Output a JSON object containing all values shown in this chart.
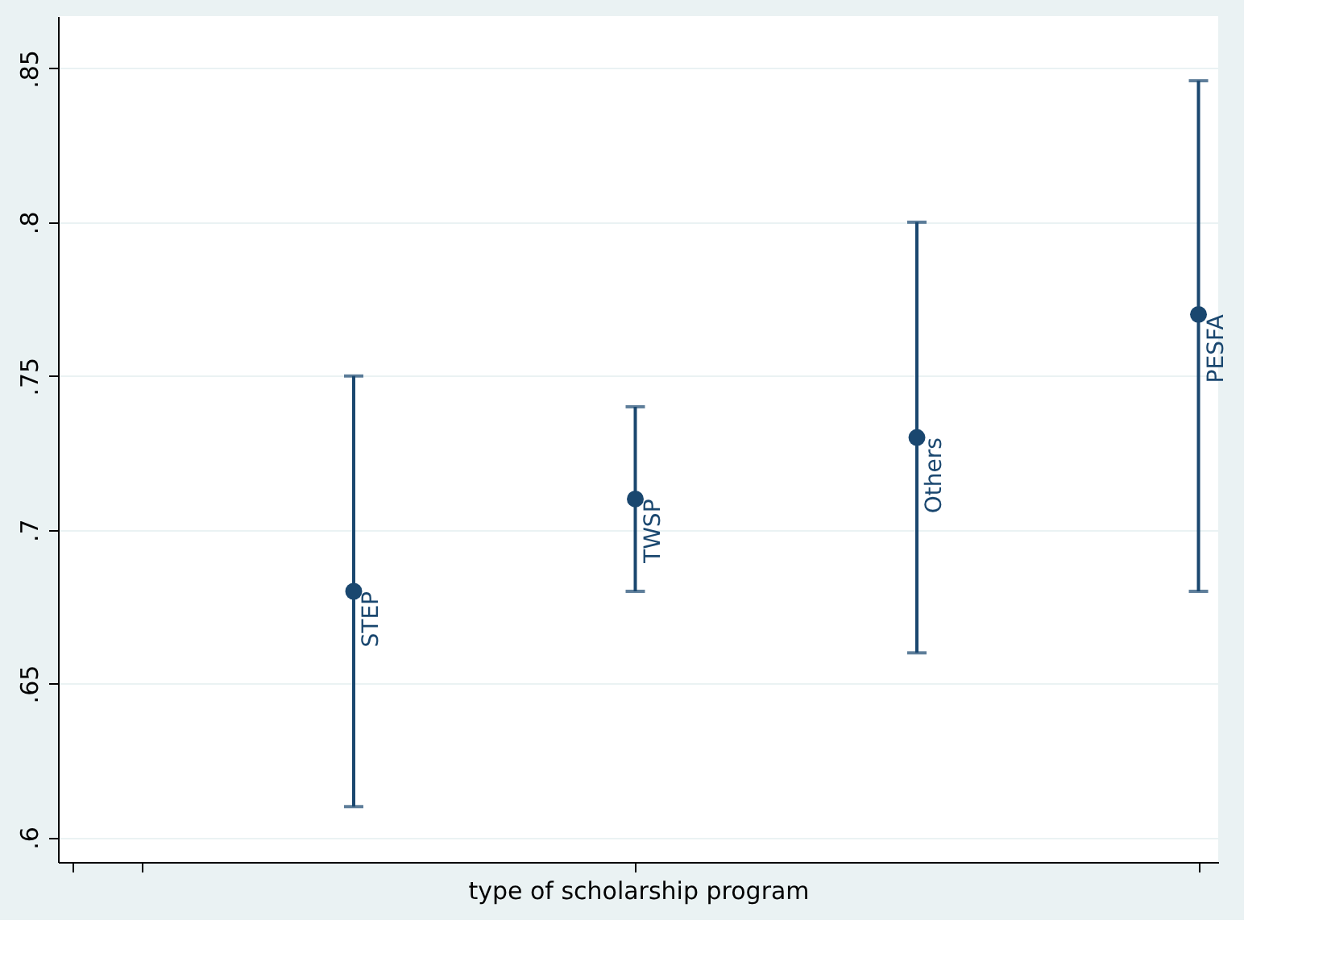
{
  "chart_data": {
    "type": "scatter",
    "xlabel": "type of scholarship program",
    "categories": [
      null,
      null,
      null,
      null,
      null
    ],
    "series": [
      {
        "color": "#1a476f",
        "values": [
          null,
          0.68,
          0.71,
          0.73,
          0.77
        ],
        "errors": [
          null,
          [
            0.61,
            0.75
          ],
          [
            0.68,
            0.74
          ],
          [
            0.66,
            0.8
          ],
          [
            0.68,
            0.846
          ]
        ]
      }
    ],
    "annotations": [
      "STEP",
      "TWSP",
      "Others",
      "PESFA"
    ],
    "ylim": [
      0.592,
      0.867
    ],
    "yticks": [
      {
        "value": 0.6,
        "label": ".6"
      },
      {
        "value": 0.65,
        "label": ".65"
      },
      {
        "value": 0.7,
        "label": ".7"
      },
      {
        "value": 0.75,
        "label": ".75"
      },
      {
        "value": 0.8,
        "label": ".8"
      },
      {
        "value": 0.85,
        "label": ".85"
      }
    ],
    "grid": "y",
    "marker": "circle",
    "tick_labels": "y"
  }
}
